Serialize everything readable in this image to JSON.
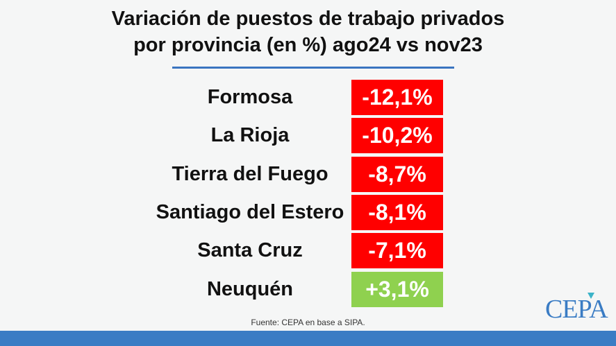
{
  "title_line1": "Variación de puestos de trabajo privados",
  "title_line2": "por provincia (en %) ago24 vs nov23",
  "rows": [
    {
      "province": "Formosa",
      "value": "-12,1%",
      "color": "#ff0000"
    },
    {
      "province": "La Rioja",
      "value": "-10,2%",
      "color": "#ff0000"
    },
    {
      "province": "Tierra del Fuego",
      "value": "-8,7%",
      "color": "#ff0000"
    },
    {
      "province": "Santiago del Estero",
      "value": "-8,1%",
      "color": "#ff0000"
    },
    {
      "province": "Santa Cruz",
      "value": "-7,1%",
      "color": "#ff0000"
    },
    {
      "province": "Neuquén",
      "value": "+3,1%",
      "color": "#8fd14f"
    }
  ],
  "source": "Fuente: CEPA en base a SIPA.",
  "logo": "CEPA"
}
